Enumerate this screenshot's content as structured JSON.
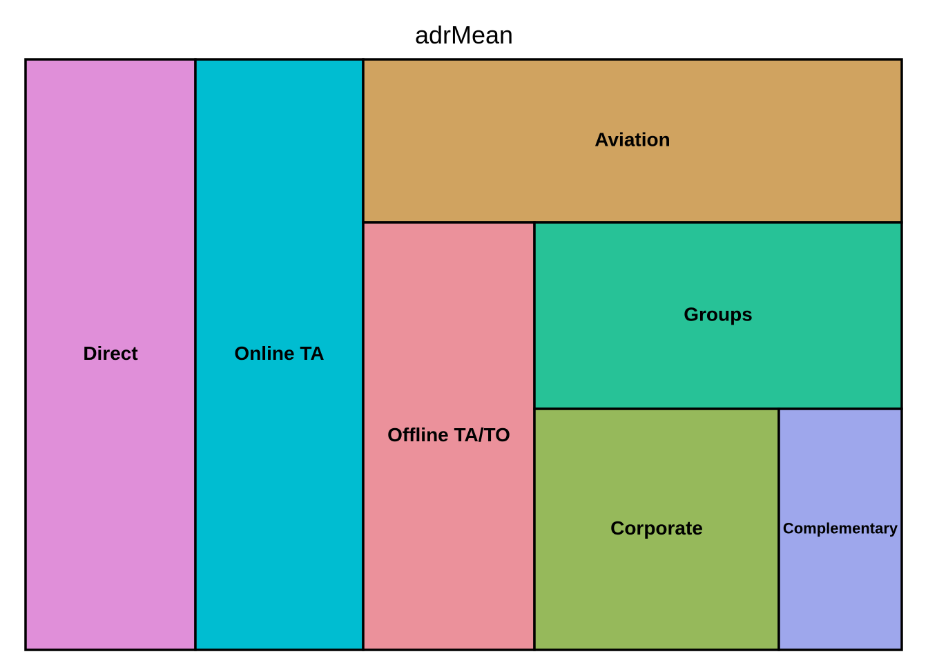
{
  "chart_data": {
    "type": "treemap",
    "title": "adrMean",
    "tiles": [
      {
        "label": "Direct",
        "color": "#E08FD9"
      },
      {
        "label": "Online TA",
        "color": "#00BDD1"
      },
      {
        "label": "Aviation",
        "color": "#D0A360"
      },
      {
        "label": "Offline TA/TO",
        "color": "#EB919B"
      },
      {
        "label": "Groups",
        "color": "#27C297"
      },
      {
        "label": "Corporate",
        "color": "#96B95B"
      },
      {
        "label": "Complementary",
        "color": "#9EA7EC"
      }
    ]
  }
}
